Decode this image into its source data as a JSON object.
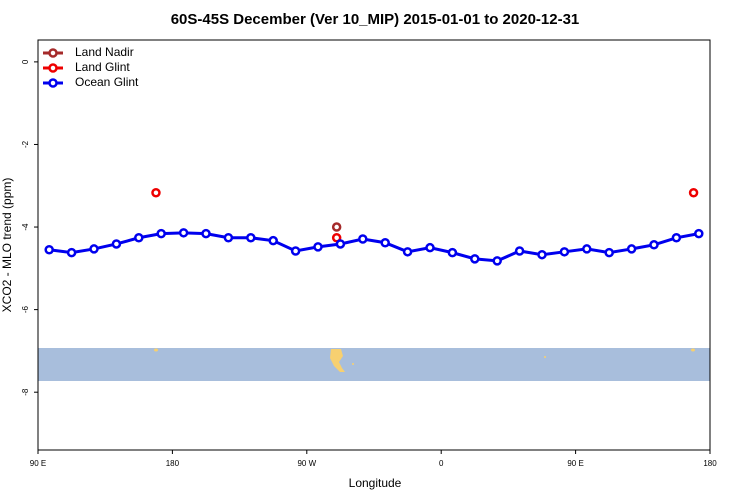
{
  "chart_data": {
    "type": "line",
    "title": "60S-45S December (Ver 10_MIP)   2015-01-01 to 2020-12-31",
    "xlabel": "Longitude",
    "ylabel": "XCO2 - MLO trend (ppm)",
    "xlim": [
      90,
      540
    ],
    "ylim": [
      -9.4,
      0.53
    ],
    "xticks": [
      {
        "value": 90,
        "label": "90 E"
      },
      {
        "value": 180,
        "label": "180"
      },
      {
        "value": 270,
        "label": "90 W"
      },
      {
        "value": 360,
        "label": "0"
      },
      {
        "value": 450,
        "label": "90 E"
      },
      {
        "value": 540,
        "label": "180"
      }
    ],
    "yticks": [
      0,
      -2,
      -4,
      -6,
      -8
    ],
    "legend": "top-left",
    "series": [
      {
        "name": "Land Nadir",
        "color": "#a52a2a",
        "x": [
          290
        ],
        "values": [
          -4.0
        ],
        "line": false
      },
      {
        "name": "Land Glint",
        "color": "#ee0000",
        "x": [
          169,
          290,
          529
        ],
        "values": [
          -3.17,
          -4.26,
          -3.17
        ],
        "line": false
      },
      {
        "name": "Ocean Glint",
        "color": "#0000ee",
        "line": true,
        "x": [
          97.5,
          112.5,
          127.5,
          142.5,
          157.5,
          172.5,
          187.5,
          202.5,
          217.5,
          232.5,
          247.5,
          262.5,
          277.5,
          292.5,
          307.5,
          322.5,
          337.5,
          352.5,
          367.5,
          382.5,
          397.5,
          412.5,
          427.5,
          442.5,
          457.5,
          472.5,
          487.5,
          502.5,
          517.5,
          532.5
        ],
        "values": [
          -4.55,
          -4.62,
          -4.53,
          -4.41,
          -4.26,
          -4.16,
          -4.14,
          -4.16,
          -4.26,
          -4.26,
          -4.33,
          -4.58,
          -4.48,
          -4.41,
          -4.29,
          -4.38,
          -4.6,
          -4.5,
          -4.62,
          -4.77,
          -4.82,
          -4.58,
          -4.67,
          -4.6,
          -4.53,
          -4.62,
          -4.53,
          -4.43,
          -4.26,
          -4.16
        ]
      }
    ]
  }
}
